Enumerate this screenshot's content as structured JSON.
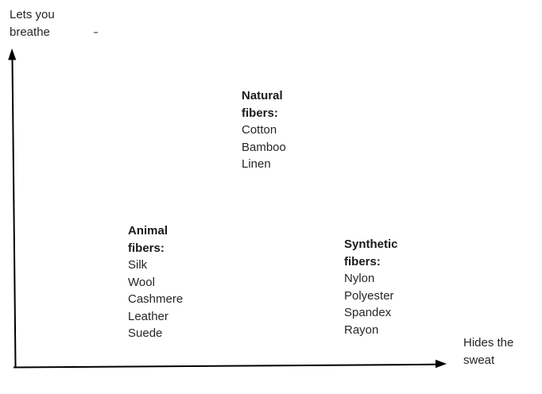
{
  "canvas": {
    "background": "#ffffff",
    "axis_color": "#000000",
    "text_color": "#262626",
    "title_color": "#1a1a1a"
  },
  "y_axis_label": {
    "lines": [
      "Lets you",
      "breathe"
    ]
  },
  "x_axis_label": {
    "lines": [
      "Hides the",
      "sweat"
    ]
  },
  "groups": [
    {
      "id": "natural-fibers",
      "title_lines": [
        "Natural",
        "fibers:"
      ],
      "items": [
        "Cotton",
        "Bamboo",
        "Linen"
      ]
    },
    {
      "id": "animal-fibers",
      "title_lines": [
        "Animal",
        "fibers:"
      ],
      "items": [
        "Silk",
        "Wool",
        "Cashmere",
        "Leather",
        "Suede"
      ]
    },
    {
      "id": "synthetic-fibers",
      "title_lines": [
        "Synthetic",
        "fibers:"
      ],
      "items": [
        "Nylon",
        "Polyester",
        "Spandex",
        "Rayon"
      ]
    }
  ]
}
